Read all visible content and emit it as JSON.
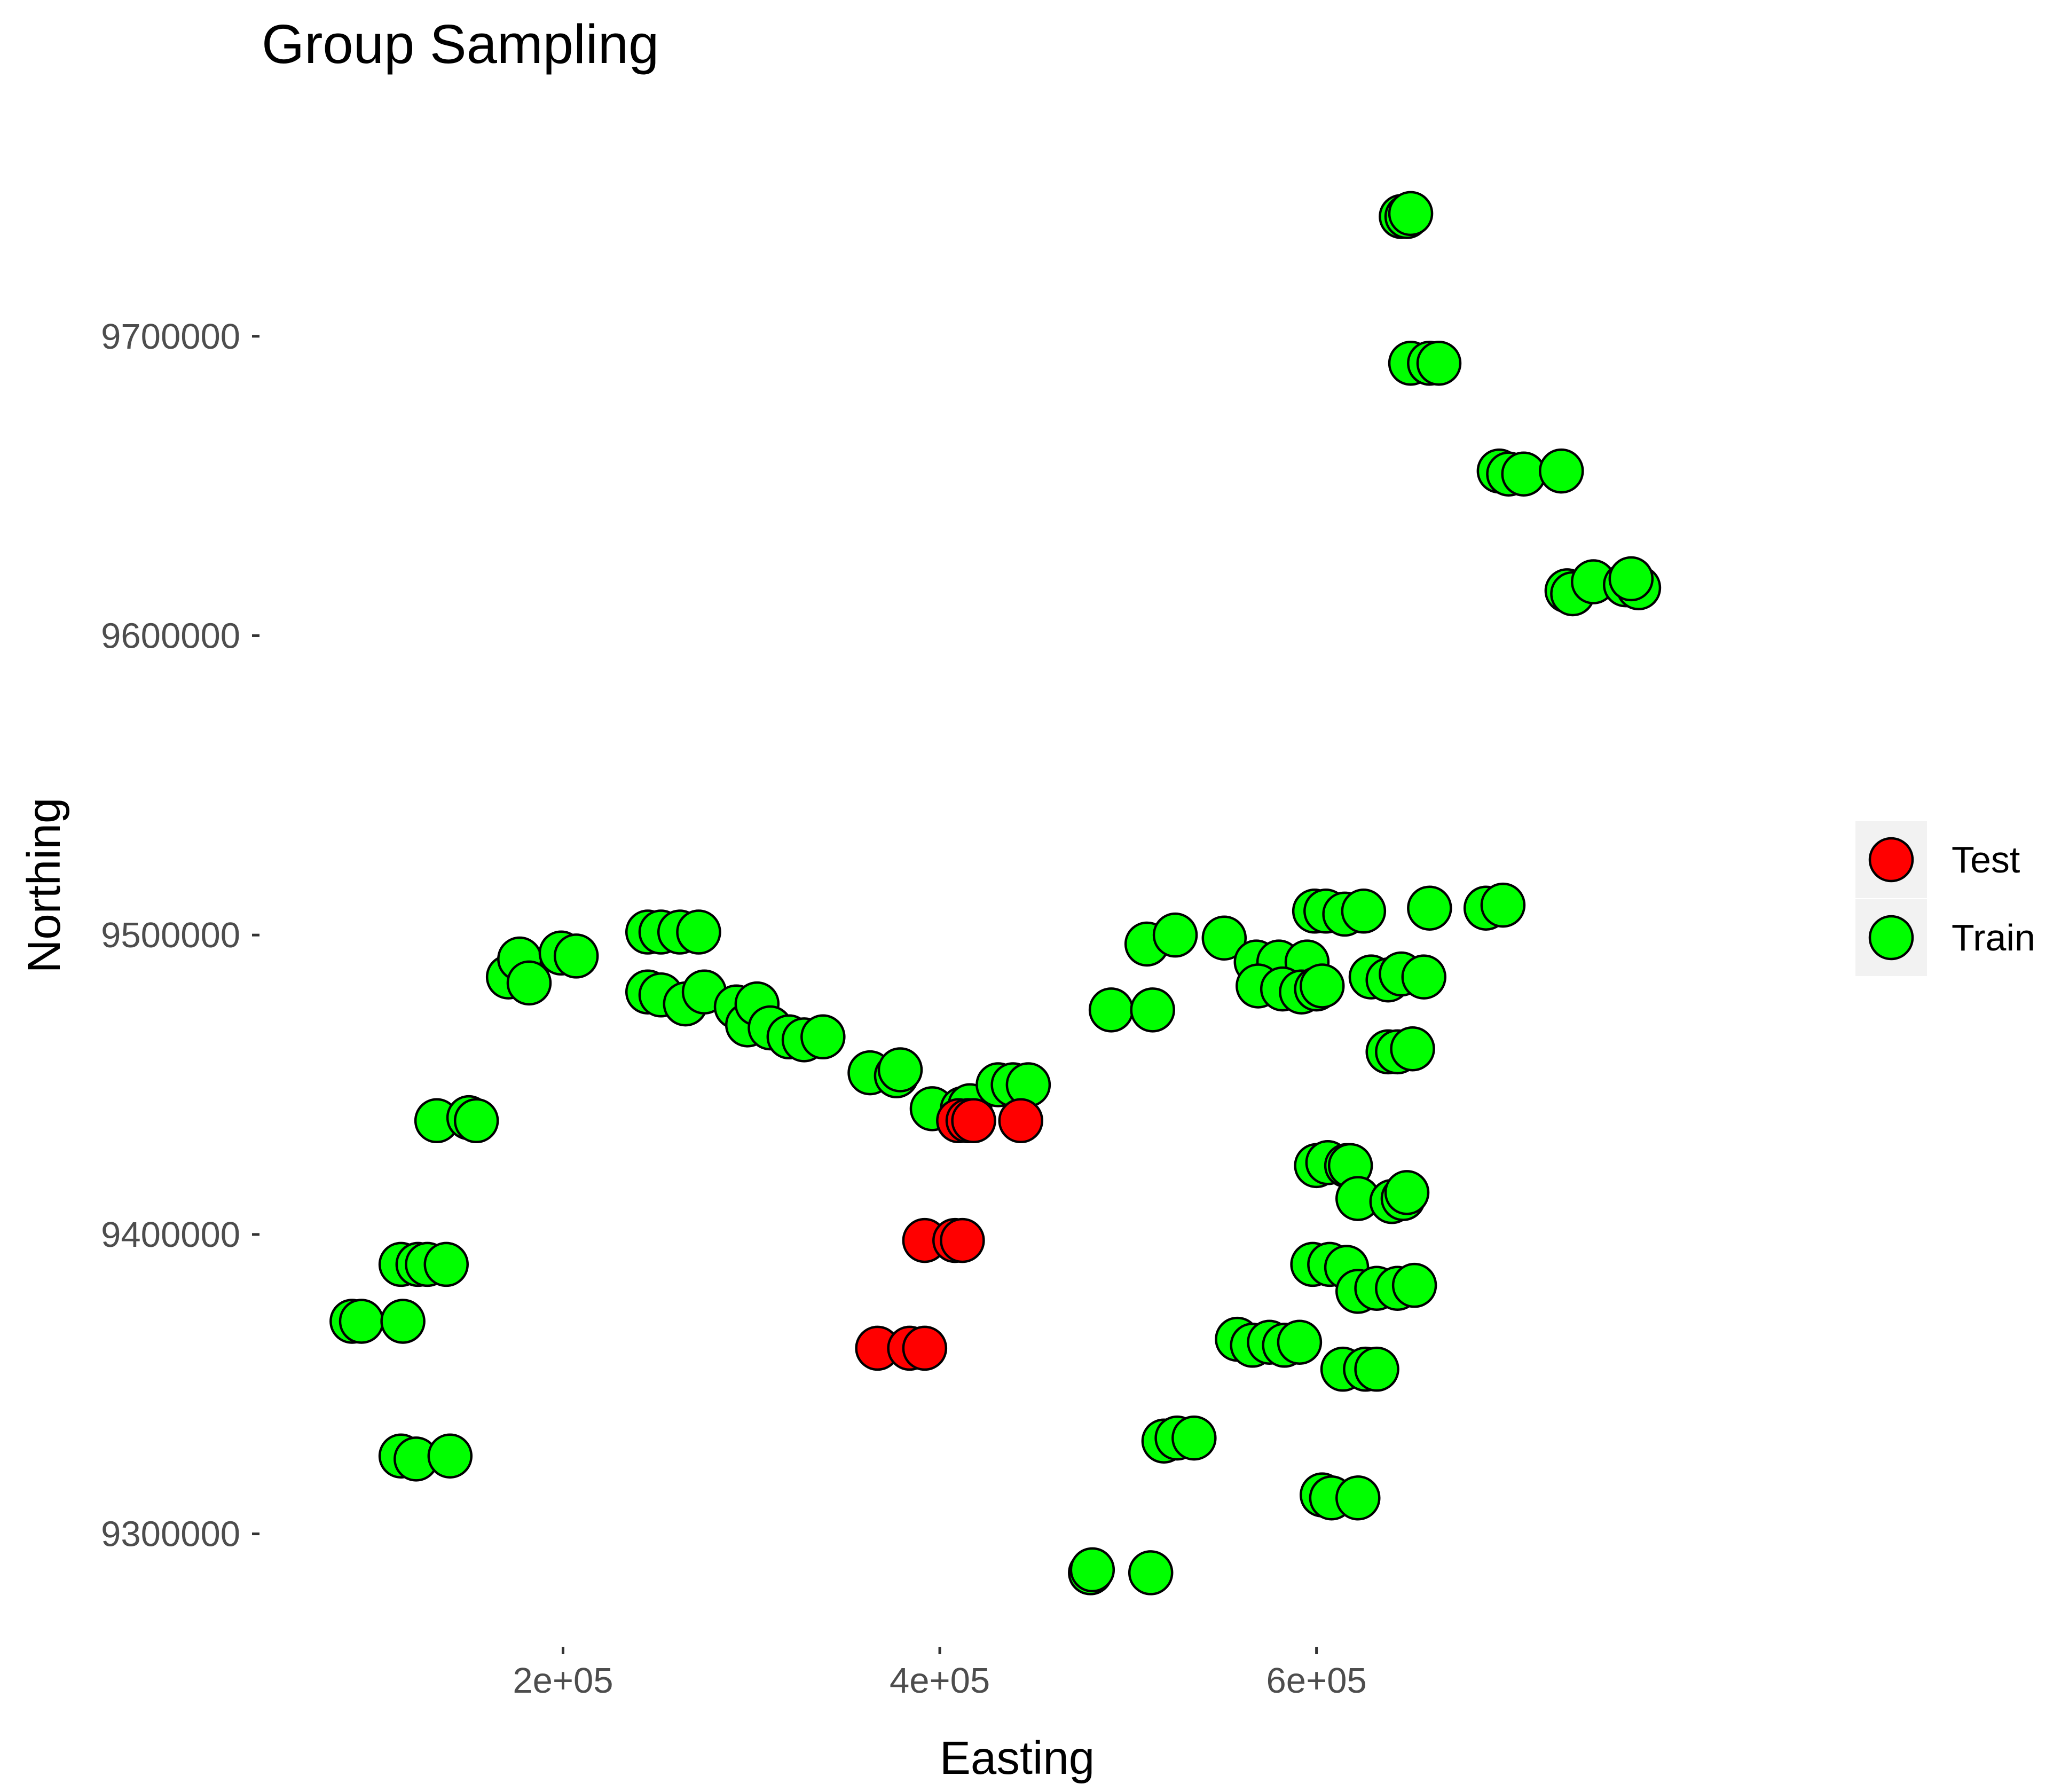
{
  "chart_data": {
    "type": "scatter",
    "title": "Group Sampling",
    "xlabel": "Easting",
    "ylabel": "Northing",
    "xlim": [
      40000,
      845000
    ],
    "ylim": [
      9263000,
      9782000
    ],
    "xticks": [
      200000,
      400000,
      600000
    ],
    "xtick_labels": [
      "2e+05",
      "4e+05",
      "6e+05"
    ],
    "yticks": [
      9300000,
      9400000,
      9500000,
      9600000,
      9700000
    ],
    "ytick_labels": [
      "9300000",
      "9400000",
      "9500000",
      "9600000",
      "9700000"
    ],
    "grid": false,
    "legend_position": "right",
    "series": [
      {
        "name": "Test",
        "color": "#ff0000",
        "points": [
          [
            410000,
            9438000
          ],
          [
            415000,
            9438000
          ],
          [
            418000,
            9438000
          ],
          [
            443000,
            9438000
          ],
          [
            392000,
            9398000
          ],
          [
            408000,
            9398000
          ],
          [
            412000,
            9398000
          ],
          [
            367000,
            9362000
          ],
          [
            384000,
            9362000
          ],
          [
            392000,
            9362000
          ]
        ]
      },
      {
        "name": "Train",
        "color": "#00ff00",
        "points": [
          [
            645000,
            9740000
          ],
          [
            648000,
            9740000
          ],
          [
            650000,
            9741000
          ],
          [
            650000,
            9691000
          ],
          [
            660000,
            9691000
          ],
          [
            665000,
            9691000
          ],
          [
            697000,
            9655000
          ],
          [
            702000,
            9654000
          ],
          [
            710000,
            9654000
          ],
          [
            730000,
            9655000
          ],
          [
            733000,
            9615000
          ],
          [
            736000,
            9614000
          ],
          [
            747000,
            9618000
          ],
          [
            764000,
            9617000
          ],
          [
            771000,
            9616000
          ],
          [
            767000,
            9619000
          ],
          [
            88000,
            9371000
          ],
          [
            93000,
            9371000
          ],
          [
            115000,
            9371000
          ],
          [
            114000,
            9390000
          ],
          [
            123000,
            9390000
          ],
          [
            128000,
            9390000
          ],
          [
            138000,
            9390000
          ],
          [
            114000,
            9326000
          ],
          [
            122000,
            9325000
          ],
          [
            140000,
            9326000
          ],
          [
            133000,
            9438000
          ],
          [
            150000,
            9439000
          ],
          [
            154000,
            9438000
          ],
          [
            171000,
            9486000
          ],
          [
            177000,
            9492000
          ],
          [
            182000,
            9484000
          ],
          [
            199000,
            9494000
          ],
          [
            207000,
            9493000
          ],
          [
            245000,
            9501000
          ],
          [
            252000,
            9501000
          ],
          [
            262000,
            9501000
          ],
          [
            272000,
            9501000
          ],
          [
            245000,
            9481000
          ],
          [
            252000,
            9480000
          ],
          [
            265000,
            9477000
          ],
          [
            275000,
            9481000
          ],
          [
            292000,
            9476000
          ],
          [
            298000,
            9470000
          ],
          [
            303000,
            9477000
          ],
          [
            310000,
            9469000
          ],
          [
            320000,
            9466000
          ],
          [
            328000,
            9465000
          ],
          [
            338000,
            9466000
          ],
          [
            363000,
            9454000
          ],
          [
            377000,
            9453000
          ],
          [
            379000,
            9455000
          ],
          [
            396000,
            9442000
          ],
          [
            412000,
            9442000
          ],
          [
            416000,
            9443000
          ],
          [
            431000,
            9450000
          ],
          [
            439000,
            9450000
          ],
          [
            447000,
            9450000
          ],
          [
            480000,
            9287000
          ],
          [
            481000,
            9288000
          ],
          [
            512000,
            9287000
          ],
          [
            491000,
            9475000
          ],
          [
            513000,
            9475000
          ],
          [
            510000,
            9497000
          ],
          [
            525000,
            9500000
          ],
          [
            551000,
            9499000
          ],
          [
            568000,
            9491000
          ],
          [
            580000,
            9491000
          ],
          [
            595000,
            9491000
          ],
          [
            569000,
            9483000
          ],
          [
            582000,
            9482000
          ],
          [
            592000,
            9481000
          ],
          [
            600000,
            9482000
          ],
          [
            603000,
            9483000
          ],
          [
            599000,
            9508000
          ],
          [
            605000,
            9508000
          ],
          [
            615000,
            9507000
          ],
          [
            625000,
            9508000
          ],
          [
            629000,
            9486000
          ],
          [
            638000,
            9485000
          ],
          [
            645000,
            9487000
          ],
          [
            657000,
            9486000
          ],
          [
            638000,
            9461000
          ],
          [
            643000,
            9461000
          ],
          [
            651000,
            9462000
          ],
          [
            660000,
            9509000
          ],
          [
            690000,
            9509000
          ],
          [
            699000,
            9510000
          ],
          [
            600000,
            9423000
          ],
          [
            606000,
            9424000
          ],
          [
            616000,
            9423000
          ],
          [
            618000,
            9423000
          ],
          [
            622000,
            9412000
          ],
          [
            640000,
            9411000
          ],
          [
            646000,
            9412000
          ],
          [
            648000,
            9414000
          ],
          [
            598000,
            9390000
          ],
          [
            607000,
            9390000
          ],
          [
            616000,
            9389000
          ],
          [
            622000,
            9381000
          ],
          [
            632000,
            9382000
          ],
          [
            643000,
            9382000
          ],
          [
            652000,
            9383000
          ],
          [
            558000,
            9365000
          ],
          [
            566000,
            9363000
          ],
          [
            575000,
            9364000
          ],
          [
            583000,
            9363000
          ],
          [
            591000,
            9364000
          ],
          [
            603000,
            9313000
          ],
          [
            608000,
            9312000
          ],
          [
            622000,
            9312000
          ],
          [
            614000,
            9355000
          ],
          [
            626000,
            9355000
          ],
          [
            632000,
            9355000
          ],
          [
            519000,
            9331000
          ],
          [
            526000,
            9332000
          ],
          [
            535000,
            9332000
          ]
        ]
      }
    ]
  }
}
